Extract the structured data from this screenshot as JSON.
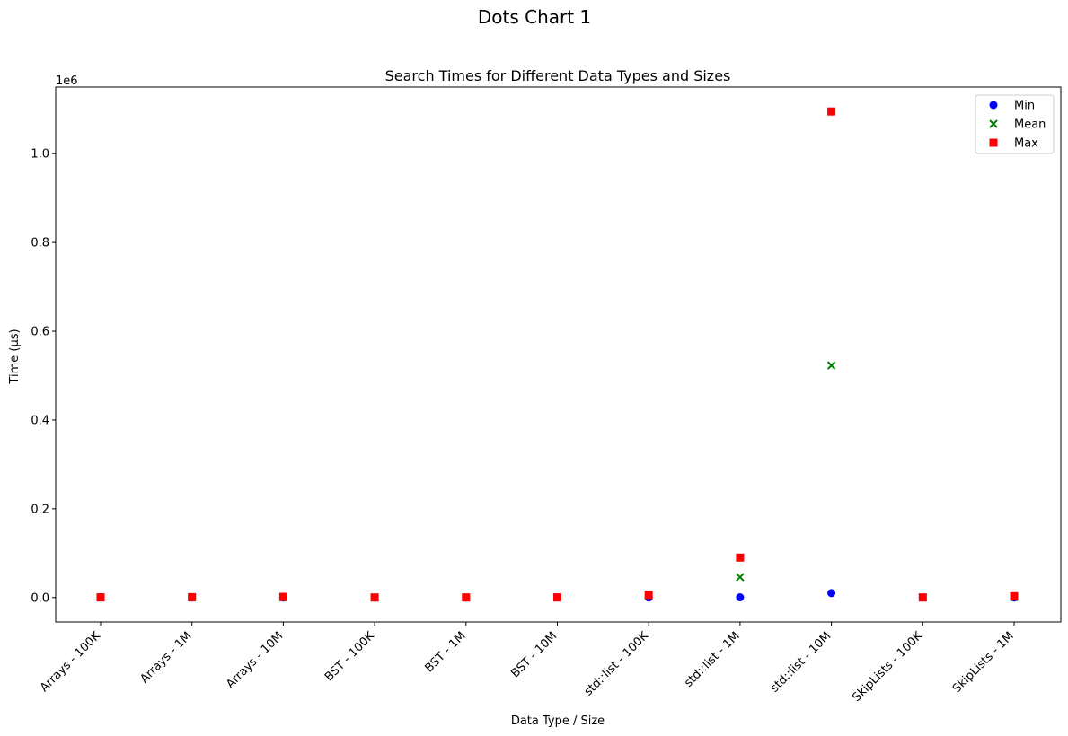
{
  "figure_title": "Dots Chart 1",
  "chart_data": {
    "type": "scatter",
    "title": "Search Times for Different Data Types and Sizes",
    "xlabel": "Data Type / Size",
    "ylabel": "Time (µs)",
    "y_offset_label": "1e6",
    "y_scale": 1000000,
    "categories": [
      "Arrays - 100K",
      "Arrays - 1M",
      "Arrays - 10M",
      "BST - 100K",
      "BST - 1M",
      "BST - 10M",
      "std::list - 100K",
      "std::list - 1M",
      "std::list - 10M",
      "SkipLists - 100K",
      "SkipLists - 1M"
    ],
    "ylim": [
      -55000,
      1150000
    ],
    "yticks": [
      0,
      200000,
      400000,
      600000,
      800000,
      1000000
    ],
    "ytick_labels": [
      "0.0",
      "0.2",
      "0.4",
      "0.6",
      "0.8",
      "1.0"
    ],
    "grid": false,
    "legend_position": "top-right",
    "series": [
      {
        "name": "Min",
        "marker": "circle",
        "color": "#0000ff",
        "values": [
          5,
          5,
          10,
          2,
          3,
          4,
          200,
          500,
          10000,
          10,
          100
        ]
      },
      {
        "name": "Mean",
        "marker": "x",
        "color": "#008000",
        "values": [
          50,
          100,
          200,
          20,
          30,
          40,
          4000,
          46000,
          523000,
          50,
          1000
        ]
      },
      {
        "name": "Max",
        "marker": "square",
        "color": "#ff0000",
        "values": [
          500,
          800,
          1500,
          200,
          300,
          400,
          6000,
          90000,
          1095000,
          300,
          3000
        ]
      }
    ]
  }
}
